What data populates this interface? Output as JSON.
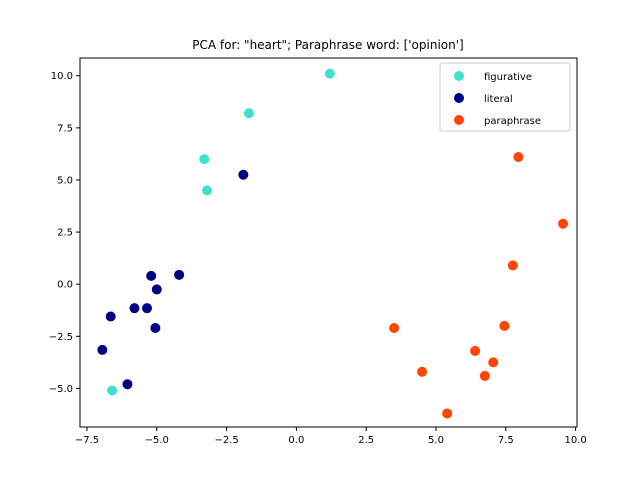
{
  "chart_data": {
    "type": "scatter",
    "title": "PCA for: \"heart\"; Paraphrase word: ['opinion']",
    "xlabel": "",
    "ylabel": "",
    "xlim": [
      -7.75,
      10.05
    ],
    "ylim": [
      -6.85,
      10.85
    ],
    "xticks": [
      -7.5,
      -5.0,
      -2.5,
      0.0,
      2.5,
      5.0,
      7.5,
      10.0
    ],
    "xtick_labels": [
      "−7.5",
      "−5.0",
      "−2.5",
      "0.0",
      "2.5",
      "5.0",
      "7.5",
      "10.0"
    ],
    "yticks": [
      -5.0,
      -2.5,
      0.0,
      2.5,
      5.0,
      7.5,
      10.0
    ],
    "ytick_labels": [
      "−5.0",
      "−2.5",
      "0.0",
      "2.5",
      "5.0",
      "7.5",
      "10.0"
    ],
    "grid": false,
    "legend_position": "top-right",
    "series": [
      {
        "name": "figurative",
        "color": "#40e0d0",
        "points": [
          [
            1.2,
            10.1
          ],
          [
            -1.7,
            8.2
          ],
          [
            -3.3,
            6.0
          ],
          [
            -3.2,
            4.5
          ],
          [
            -6.6,
            -5.1
          ]
        ]
      },
      {
        "name": "literal",
        "color": "#000080",
        "points": [
          [
            -1.9,
            5.25
          ],
          [
            -5.2,
            0.4
          ],
          [
            -4.2,
            0.45
          ],
          [
            -5.0,
            -0.25
          ],
          [
            -5.8,
            -1.15
          ],
          [
            -5.35,
            -1.15
          ],
          [
            -6.65,
            -1.55
          ],
          [
            -5.05,
            -2.1
          ],
          [
            -6.95,
            -3.15
          ],
          [
            -6.05,
            -4.8
          ]
        ]
      },
      {
        "name": "paraphrase",
        "color": "#ff4500",
        "points": [
          [
            7.95,
            6.1
          ],
          [
            9.55,
            2.9
          ],
          [
            7.75,
            0.9
          ],
          [
            7.45,
            -2.0
          ],
          [
            3.5,
            -2.1
          ],
          [
            6.4,
            -3.2
          ],
          [
            7.05,
            -3.75
          ],
          [
            4.5,
            -4.2
          ],
          [
            6.75,
            -4.4
          ],
          [
            5.4,
            -6.2
          ]
        ]
      }
    ]
  }
}
